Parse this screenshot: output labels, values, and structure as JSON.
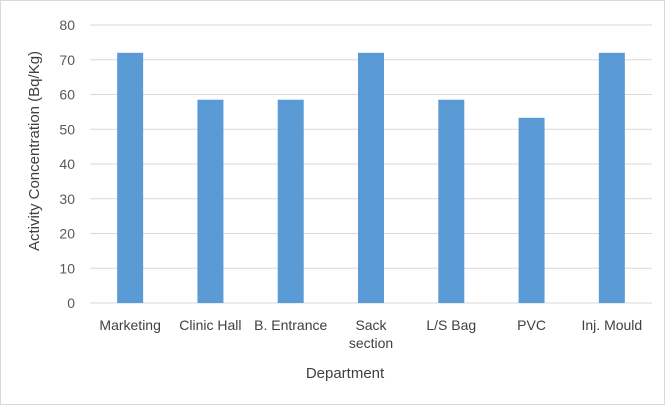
{
  "chart_data": {
    "type": "bar",
    "categories": [
      [
        "Marketing"
      ],
      [
        "Clinic Hall"
      ],
      [
        "B. Entrance"
      ],
      [
        "Sack",
        "section"
      ],
      [
        "L/S Bag"
      ],
      [
        "PVC"
      ],
      [
        "Inj. Mould"
      ]
    ],
    "values": [
      72,
      58.5,
      58.5,
      72,
      58.5,
      53.3,
      72
    ],
    "xlabel": "Department",
    "ylabel": "Activity Concentration (Bq/Kg)",
    "ylim": [
      0,
      80
    ],
    "yticks": [
      0,
      10,
      20,
      30,
      40,
      50,
      60,
      70,
      80
    ],
    "grid": true,
    "bar_color": "#5b9bd5",
    "grid_color": "#d9d9d9"
  }
}
